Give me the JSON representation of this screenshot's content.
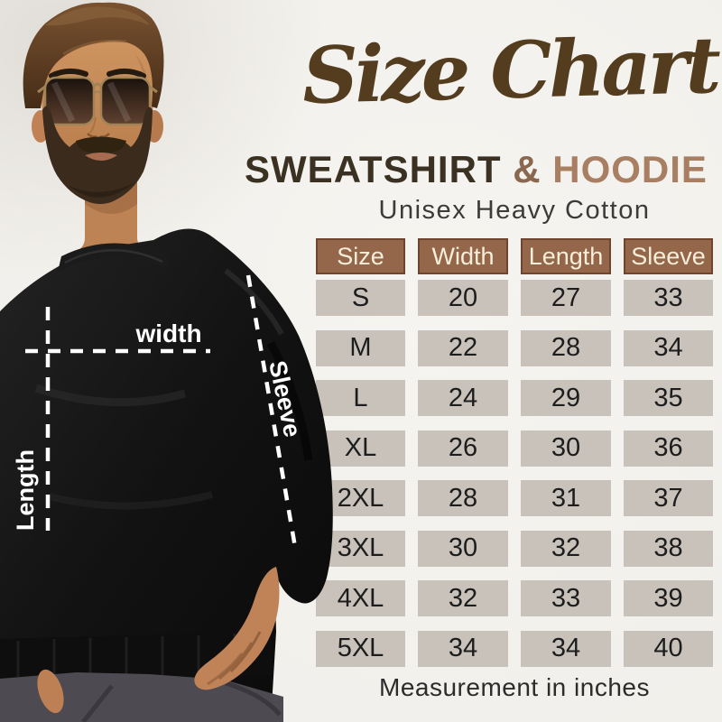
{
  "title": "Size Chart",
  "subtitle": {
    "part1": "SWEATSHIRT",
    "amp": "&",
    "part2": "HOODIE"
  },
  "tagline": "Unisex Heavy Cotton",
  "footer": "Measurement in inches",
  "photo_labels": {
    "width": "width",
    "length": "Length",
    "sleeve": "Sleeve"
  },
  "table": {
    "headers": [
      "Size",
      "Width",
      "Length",
      "Sleeve"
    ],
    "rows": [
      [
        "S",
        "20",
        "27",
        "33"
      ],
      [
        "M",
        "22",
        "28",
        "34"
      ],
      [
        "L",
        "24",
        "29",
        "35"
      ],
      [
        "XL",
        "26",
        "30",
        "36"
      ],
      [
        "2XL",
        "28",
        "31",
        "37"
      ],
      [
        "3XL",
        "30",
        "32",
        "38"
      ],
      [
        "4XL",
        "32",
        "33",
        "39"
      ],
      [
        "5XL",
        "34",
        "34",
        "40"
      ]
    ]
  },
  "colors": {
    "background": "#f1efeb",
    "title_brown": "#533d1e",
    "subtitle_dark": "#3a3122",
    "subtitle_amp": "#8a6850",
    "subtitle_light": "#a87f63",
    "header_bg": "#94664a",
    "header_border": "#6f4530",
    "header_text": "#f7eeda",
    "cell_bg": "#c9c2bb",
    "cell_text": "#1d1d1d",
    "measure_line": "#ffffff"
  },
  "chart_data": {
    "type": "table",
    "title": "Size Chart — Sweatshirt & Hoodie (Unisex Heavy Cotton)",
    "unit": "inches",
    "columns": [
      "Size",
      "Width",
      "Length",
      "Sleeve"
    ],
    "rows": [
      [
        "S",
        20,
        27,
        33
      ],
      [
        "M",
        22,
        28,
        34
      ],
      [
        "L",
        24,
        29,
        35
      ],
      [
        "XL",
        26,
        30,
        36
      ],
      [
        "2XL",
        28,
        31,
        37
      ],
      [
        "3XL",
        30,
        32,
        38
      ],
      [
        "4XL",
        32,
        33,
        39
      ],
      [
        "5XL",
        34,
        34,
        40
      ]
    ],
    "note": "Measurement in inches"
  }
}
